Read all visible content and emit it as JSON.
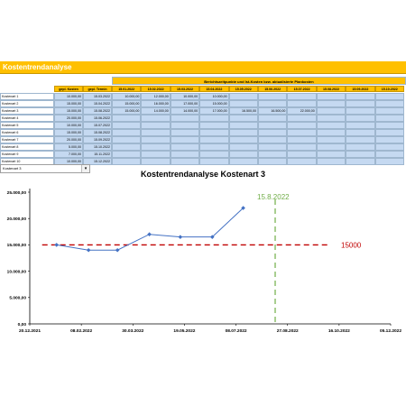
{
  "sheet": {
    "title": "Kostentrendanalyse",
    "group_header": "Berichtszeitpunkte und Ist-Kosten bzw. aktualisierte Plankosten",
    "col_plan_cost": "gepl. Kosten",
    "col_plan_date": "gepl. Termin",
    "report_dates": [
      "15.01.2022",
      "15.02.2022",
      "15.03.2022",
      "15.04.2022",
      "15.05.2022",
      "15.06.2022",
      "15.07.2022",
      "15.08.2022",
      "15.09.2022",
      "15.10.2022"
    ],
    "rows": [
      {
        "name": "Kostenart 1",
        "cost": "10.000,00",
        "date": "15.03.2022",
        "values": [
          "10.000,00",
          "12.000,00",
          "10.000,00",
          "10.000,00",
          "",
          "",
          "",
          "",
          "",
          ""
        ]
      },
      {
        "name": "Kostenart 2",
        "cost": "15.000,00",
        "date": "15.04.2022",
        "values": [
          "15.000,00",
          "16.000,00",
          "17.000,00",
          "15.000,00",
          "",
          "",
          "",
          "",
          "",
          ""
        ]
      },
      {
        "name": "Kostenart 3",
        "cost": "15.000,00",
        "date": "15.08.2022",
        "values": [
          "15.000,00",
          "14.000,00",
          "14.000,00",
          "17.000,00",
          "16.500,00",
          "16.500,00",
          "22.000,00",
          "",
          "",
          ""
        ]
      },
      {
        "name": "Kostenart 4",
        "cost": "20.000,00",
        "date": "15.06.2022",
        "values": [
          "",
          "",
          "",
          "",
          "",
          "",
          "",
          "",
          "",
          ""
        ]
      },
      {
        "name": "Kostenart 5",
        "cost": "10.000,00",
        "date": "15.07.2022",
        "values": [
          "",
          "",
          "",
          "",
          "",
          "",
          "",
          "",
          "",
          ""
        ]
      },
      {
        "name": "Kostenart 6",
        "cost": "15.000,00",
        "date": "15.08.2022",
        "values": [
          "",
          "",
          "",
          "",
          "",
          "",
          "",
          "",
          "",
          ""
        ]
      },
      {
        "name": "Kostenart 7",
        "cost": "20.000,00",
        "date": "15.09.2022",
        "values": [
          "",
          "",
          "",
          "",
          "",
          "",
          "",
          "",
          "",
          ""
        ]
      },
      {
        "name": "Kostenart 8",
        "cost": "5.000,00",
        "date": "15.10.2022",
        "values": [
          "",
          "",
          "",
          "",
          "",
          "",
          "",
          "",
          "",
          ""
        ]
      },
      {
        "name": "Kostenart 9",
        "cost": "7.000,00",
        "date": "15.11.2022",
        "values": [
          "",
          "",
          "",
          "",
          "",
          "",
          "",
          "",
          "",
          ""
        ]
      },
      {
        "name": "Kostenart 10",
        "cost": "10.000,00",
        "date": "15.12.2022",
        "values": [
          "",
          "",
          "",
          "",
          "",
          "",
          "",
          "",
          "",
          ""
        ]
      }
    ],
    "selector_value": "Kostenart 3"
  },
  "chart_data": {
    "type": "line",
    "title": "Kostentrendanalyse  Kostenart 3",
    "x_ticks": [
      "20.12.2021",
      "08.02.2022",
      "30.03.2022",
      "19.05.2022",
      "08.07.2022",
      "27.08.2022",
      "16.10.2022",
      "05.12.2022"
    ],
    "y_ticks": [
      "0,00",
      "5.000,00",
      "10.000,00",
      "15.000,00",
      "20.000,00",
      "25.000,00"
    ],
    "ylim": [
      0,
      25000
    ],
    "xlim": [
      "2021-12-20",
      "2022-12-05"
    ],
    "series": [
      {
        "x": [
          "2022-01-15",
          "2022-02-15",
          "2022-03-15",
          "2022-04-15",
          "2022-05-15",
          "2022-06-15",
          "2022-07-15"
        ],
        "values": [
          15000,
          14000,
          14000,
          17000,
          16500,
          16500,
          22000
        ],
        "color": "#4472c4"
      }
    ],
    "ref_line_value": 15000,
    "ref_line_label": "15000",
    "ref_line_color": "#c00000",
    "deadline_date": "2022-08-15",
    "deadline_label": "15.8.2022",
    "deadline_color": "#70ad47"
  }
}
